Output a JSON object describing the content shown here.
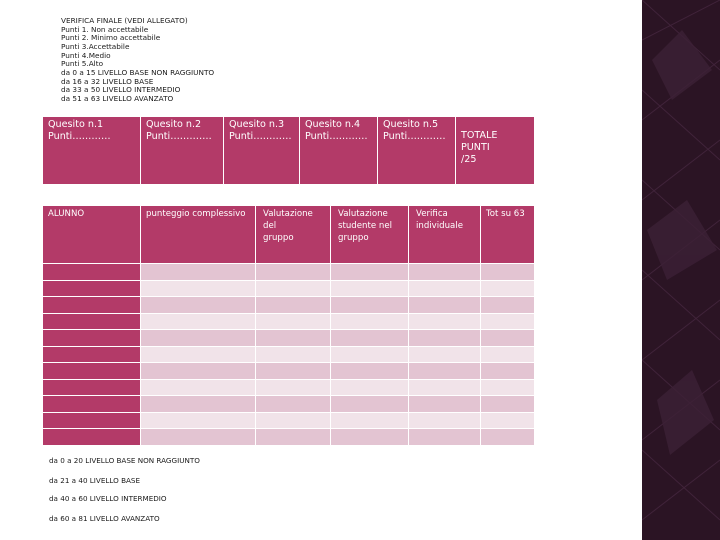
{
  "header_lines": [
    "VERIFICA FINALE (VEDI ALLEGATO)",
    "Punti 1. Non accettabile",
    "Punti 2. Minimo accettabile",
    "Punti 3.Accettabile",
    "Punti 4.Medio",
    "Punti 5.Alto",
    "da 0 a 15 LIVELLO BASE NON RAGGIUNTO",
    "da 16 a 32 LIVELLO BASE",
    "da 33 a 50 LIVELLO INTERMEDIO",
    "da 51 a 63 LIVELLO AVANZATO"
  ],
  "quesiti": [
    {
      "title": "Quesito n.1",
      "punti": "Punti…………"
    },
    {
      "title": "Quesito n.2",
      "punti": "Punti…………."
    },
    {
      "title": "Quesito n.3",
      "punti": "Punti…………"
    },
    {
      "title": "Quesito n.4",
      "punti": "Punti…………"
    },
    {
      "title": "Quesito n.5",
      "punti": "Punti…………"
    }
  ],
  "totale": [
    "TOTALE",
    "PUNTI",
    "/25"
  ],
  "second_header": [
    [
      "ALUNNO"
    ],
    [
      "punteggio complessivo"
    ],
    [
      "Valutazione",
      "del",
      "gruppo"
    ],
    [
      "Valutazione",
      "studente nel",
      "gruppo"
    ],
    [
      "Verifica",
      "individuale"
    ],
    [
      "Tot su 63"
    ]
  ],
  "footer_lines": [
    "da 0 a 20 LIVELLO BASE NON RAGGIUNTO",
    "da 21 a 40 LIVELLO BASE",
    "da 40 a 60 LIVELLO INTERMEDIO",
    "da 60 a 81 LIVELLO AVANZATO"
  ],
  "colors": {
    "header_fill": "#b33a68",
    "row_dark": "#e3c4d2",
    "row_light": "#f1e3e9",
    "accent_bar": "#2b1424"
  }
}
